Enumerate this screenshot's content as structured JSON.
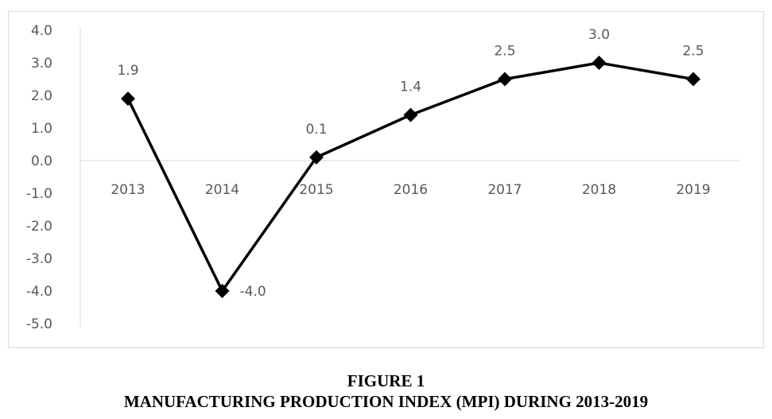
{
  "chart_data": {
    "type": "line",
    "categories": [
      "2013",
      "2014",
      "2015",
      "2016",
      "2017",
      "2018",
      "2019"
    ],
    "series": [
      {
        "values": [
          1.9,
          -4.0,
          0.1,
          1.4,
          2.5,
          3.0,
          2.5
        ]
      }
    ],
    "data_labels": [
      "1.9",
      "-4.0",
      "0.1",
      "1.4",
      "2.5",
      "3.0",
      "2.5"
    ],
    "yticks": [
      "4.0",
      "3.0",
      "2.0",
      "1.0",
      "0.0",
      "-1.0",
      "-2.0",
      "-3.0",
      "-4.0",
      "-5.0"
    ],
    "ylim": [
      -5,
      4
    ],
    "marker": "diamond",
    "line_color": "#000000",
    "grid": false,
    "legend": "none"
  },
  "caption": {
    "figure_label": "FIGURE 1",
    "title": "MANUFACTURING PRODUCTION INDEX (MPI) DURING 2013-2019"
  }
}
